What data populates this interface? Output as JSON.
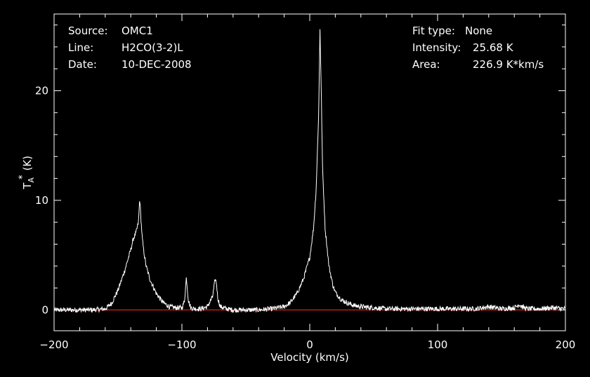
{
  "header": {
    "source_label": "Source:",
    "source_value": "OMC1",
    "line_label": "Line:",
    "line_value": "H2CO(3-2)L",
    "date_label": "Date:",
    "date_value": "10-DEC-2008",
    "fit_label": "Fit type:",
    "fit_value": "None",
    "intensity_label": "Intensity:",
    "intensity_value": "25.68 K",
    "area_label": "Area:",
    "area_value": "226.9 K*km/s"
  },
  "colors": {
    "background": "#000000",
    "trace": "#ffffff",
    "baseline": "#e02020",
    "axes": "#ffffff"
  },
  "chart_data": {
    "type": "line",
    "xlabel": "Velocity (km/s)",
    "ylabel_main": "T",
    "ylabel_sub": "A",
    "ylabel_sup": "*",
    "ylabel_unit": "(K)",
    "xlim": [
      -200,
      200
    ],
    "ylim": [
      -1.9,
      27
    ],
    "xticks": [
      -200,
      -100,
      0,
      100,
      200
    ],
    "yticks": [
      0,
      10,
      20
    ],
    "grid": false,
    "baseline": 0,
    "series": [
      {
        "color": "#ffffff",
        "x": [
          -200,
          -190,
          -180,
          -170,
          -160,
          -155,
          -150,
          -145,
          -140,
          -138,
          -136,
          -134,
          -133,
          -132,
          -131,
          -130,
          -128,
          -125,
          -122,
          -120,
          -115,
          -110,
          -105,
          -100,
          -98,
          -96.5,
          -95,
          -93,
          -90,
          -85,
          -80,
          -76,
          -74,
          -73,
          -72,
          -70,
          -65,
          -60,
          -50,
          -40,
          -30,
          -20,
          -15,
          -10,
          -5,
          0,
          3,
          5,
          7,
          8,
          9,
          10,
          12,
          15,
          18,
          20,
          25,
          30,
          35,
          40,
          50,
          60,
          80,
          100,
          120,
          130,
          140,
          150,
          160,
          164,
          166,
          170,
          180,
          190,
          200
        ],
        "y": [
          0.0,
          0.0,
          0.0,
          0.0,
          0.1,
          0.6,
          1.8,
          3.5,
          5.5,
          6.5,
          7.0,
          8.0,
          10.2,
          8.2,
          6.5,
          5.5,
          4.0,
          2.8,
          2.0,
          1.5,
          0.7,
          0.3,
          0.2,
          0.2,
          0.8,
          3.0,
          0.9,
          0.2,
          0.1,
          0.1,
          0.3,
          1.2,
          2.8,
          2.5,
          1.1,
          0.3,
          0.1,
          0.0,
          0.0,
          0.0,
          0.1,
          0.3,
          0.7,
          1.5,
          2.8,
          4.8,
          7.5,
          11.0,
          18.0,
          25.7,
          20.0,
          13.0,
          7.5,
          4.0,
          2.3,
          1.6,
          0.9,
          0.6,
          0.4,
          0.3,
          0.2,
          0.1,
          0.1,
          0.1,
          0.1,
          0.1,
          0.3,
          0.1,
          0.2,
          0.5,
          0.3,
          0.1,
          0.1,
          0.2,
          0.1
        ]
      }
    ]
  }
}
